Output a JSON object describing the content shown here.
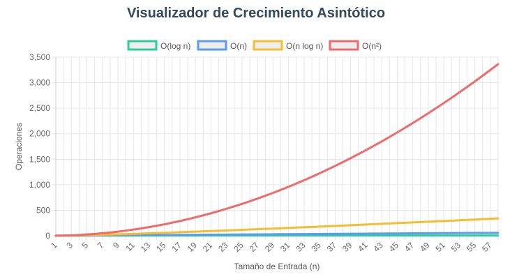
{
  "chart_data": {
    "type": "line",
    "title": "Visualizador de Crecimiento Asintótico",
    "xlabel": "Tamaño de Entrada (n)",
    "ylabel": "Operaciones",
    "x": [
      1,
      2,
      3,
      4,
      5,
      6,
      7,
      8,
      9,
      10,
      11,
      12,
      13,
      14,
      15,
      16,
      17,
      18,
      19,
      20,
      21,
      22,
      23,
      24,
      25,
      26,
      27,
      28,
      29,
      30,
      31,
      32,
      33,
      34,
      35,
      36,
      37,
      38,
      39,
      40,
      41,
      42,
      43,
      44,
      45,
      46,
      47,
      48,
      49,
      50,
      51,
      52,
      53,
      54,
      55,
      56,
      57,
      58
    ],
    "xticks": [
      1,
      3,
      5,
      7,
      9,
      11,
      13,
      15,
      17,
      19,
      21,
      23,
      25,
      27,
      29,
      31,
      33,
      35,
      37,
      39,
      41,
      43,
      45,
      47,
      49,
      51,
      53,
      55,
      57
    ],
    "xlim": [
      1,
      58
    ],
    "ylim": [
      0,
      3500
    ],
    "yticks": [
      0,
      500,
      1000,
      1500,
      2000,
      2500,
      3000,
      3500
    ],
    "ytick_labels": [
      "0",
      "500",
      "1,000",
      "1,500",
      "2,000",
      "2,500",
      "3,000",
      "3,500"
    ],
    "grid": true,
    "legend_position": "top",
    "series": [
      {
        "name": "O(log n)",
        "color": "#2ecc9a",
        "formula": "log2"
      },
      {
        "name": "O(n)",
        "color": "#5b9cf0",
        "formula": "n"
      },
      {
        "name": "O(n log n)",
        "color": "#f4bd33",
        "formula": "nlog2"
      },
      {
        "name": "O(n²)",
        "color": "#ef6b6b",
        "formula": "n2"
      }
    ]
  }
}
